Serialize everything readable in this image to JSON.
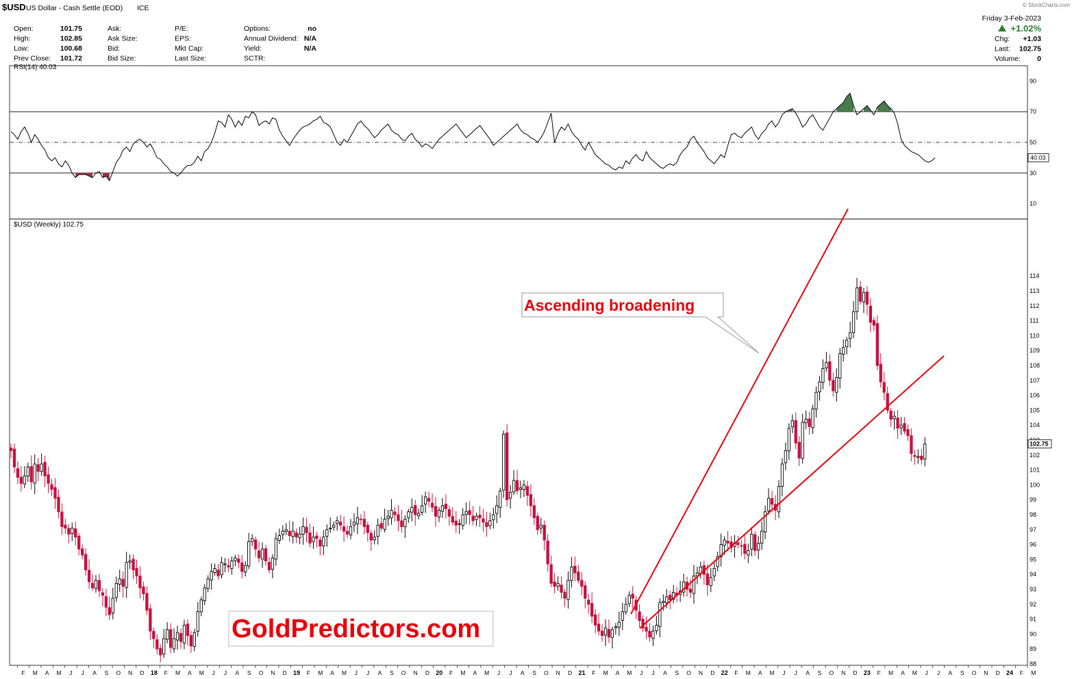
{
  "header": {
    "symbol": "$USD",
    "name": "US Dollar - Cash Settle (EOD)",
    "exchange": "ICE",
    "watermark": "© StockCharts.com",
    "date": "Friday   3-Feb-2023",
    "change_pct": "+1.02%",
    "quote_left": [
      {
        "label": "Open:",
        "value": "101.75"
      },
      {
        "label": "High:",
        "value": "102.85"
      },
      {
        "label": "Low:",
        "value": "100.68"
      },
      {
        "label": "Prev Close:",
        "value": "101.72"
      }
    ],
    "quote_mid": [
      {
        "label": "Ask:",
        "value": ""
      },
      {
        "label": "Ask Size:",
        "value": ""
      },
      {
        "label": "Bid:",
        "value": ""
      },
      {
        "label": "Bid Size:",
        "value": ""
      }
    ],
    "quote_mid2": [
      {
        "label": "P/E:",
        "value": ""
      },
      {
        "label": "EPS:",
        "value": ""
      },
      {
        "label": "Mkt Cap:",
        "value": ""
      },
      {
        "label": "Last Size:",
        "value": ""
      }
    ],
    "quote_mid3": [
      {
        "label": "Options:",
        "value": "no"
      },
      {
        "label": "Annual Dividend:",
        "value": "N/A"
      },
      {
        "label": "Yield:",
        "value": "N/A"
      },
      {
        "label": "SCTR:",
        "value": ""
      }
    ],
    "quote_right": [
      {
        "label": "Chg:",
        "value": "+1.03"
      },
      {
        "label": "Last:",
        "value": "102.75"
      },
      {
        "label": "Volume:",
        "value": "0"
      }
    ]
  },
  "colors": {
    "up": "#000000",
    "down": "#c8103e",
    "trendline": "#e8000b",
    "annotation_text": "#e8000b",
    "rsi_overbought_fill": "#4a7a4a",
    "rsi_oversold_fill": "#a0303a",
    "gridline": "#000000"
  },
  "chart_data": [
    {
      "type": "line",
      "name": "RSI(14)",
      "legend": "RSI(14) 40.03",
      "last_value_label": "40.03",
      "ylim": [
        0,
        100
      ],
      "yticks": [
        10,
        30,
        50,
        70,
        90
      ],
      "reference_lines": [
        30,
        50,
        70
      ],
      "x_start": "2017-01-06",
      "x_interval": "weekly",
      "values": [
        57,
        55,
        52,
        57,
        60,
        56,
        50,
        55,
        52,
        48,
        45,
        40,
        38,
        40,
        36,
        34,
        38,
        35,
        30,
        27,
        29,
        29,
        29,
        28,
        27,
        30,
        31,
        27,
        28,
        25,
        31,
        37,
        40,
        45,
        47,
        44,
        49,
        51,
        52,
        50,
        47,
        49,
        45,
        40,
        39,
        36,
        34,
        31,
        30,
        28,
        30,
        33,
        35,
        35,
        37,
        41,
        38,
        44,
        46,
        50,
        56,
        64,
        63,
        60,
        68,
        65,
        60,
        64,
        61,
        67,
        66,
        70,
        68,
        61,
        63,
        64,
        62,
        66,
        65,
        58,
        54,
        51,
        48,
        52,
        55,
        58,
        60,
        61,
        62,
        64,
        65,
        67,
        63,
        62,
        60,
        55,
        50,
        48,
        52,
        50,
        54,
        58,
        62,
        64,
        61,
        59,
        56,
        53,
        55,
        58,
        60,
        62,
        58,
        56,
        55,
        52,
        51,
        54,
        56,
        52,
        50,
        47,
        49,
        48,
        46,
        49,
        52,
        54,
        56,
        58,
        60,
        62,
        59,
        56,
        53,
        55,
        57,
        59,
        61,
        58,
        55,
        52,
        48,
        50,
        52,
        54,
        56,
        58,
        60,
        62,
        58,
        56,
        55,
        53,
        52,
        50,
        53,
        57,
        63,
        69,
        50,
        56,
        60,
        58,
        62,
        57,
        54,
        52,
        48,
        45,
        50,
        46,
        42,
        40,
        38,
        36,
        35,
        33,
        32,
        34,
        33,
        38,
        36,
        40,
        42,
        39,
        38,
        44,
        40,
        38,
        36,
        34,
        33,
        35,
        36,
        35,
        37,
        42,
        45,
        47,
        52,
        54,
        50,
        47,
        44,
        40,
        38,
        36,
        39,
        42,
        40,
        48,
        55,
        56,
        54,
        53,
        56,
        58,
        60,
        55,
        52,
        56,
        58,
        62,
        64,
        60,
        63,
        68,
        70,
        71,
        72,
        69,
        65,
        60,
        62,
        66,
        68,
        64,
        60,
        58,
        62,
        66,
        70,
        72,
        74,
        76,
        80,
        82,
        74,
        68,
        70,
        72,
        74,
        71,
        68,
        73,
        75,
        77,
        74,
        72,
        69,
        62,
        52,
        48,
        46,
        44,
        43,
        42,
        40,
        38,
        37,
        38,
        40
      ],
      "x_label_months": [
        "F",
        "M",
        "A",
        "M",
        "J",
        "J",
        "A",
        "S",
        "O",
        "N",
        "D",
        "18",
        "F",
        "M",
        "A",
        "M",
        "J",
        "J",
        "A",
        "S",
        "O",
        "N",
        "D",
        "19",
        "F",
        "M",
        "A",
        "M",
        "J",
        "J",
        "A",
        "S",
        "O",
        "N",
        "D",
        "20",
        "F",
        "M",
        "A",
        "M",
        "J",
        "J",
        "A",
        "S",
        "O",
        "N",
        "D",
        "21",
        "F",
        "M",
        "A",
        "M",
        "J",
        "J",
        "A",
        "S",
        "O",
        "N",
        "D",
        "22",
        "F",
        "M",
        "A",
        "M",
        "J",
        "J",
        "A",
        "S",
        "O",
        "N",
        "D",
        "23",
        "F",
        "M",
        "A",
        "M",
        "J",
        "J",
        "A",
        "S",
        "O",
        "N",
        "D",
        "24",
        "F",
        "M"
      ]
    },
    {
      "type": "candlestick",
      "name": "$USD (Weekly)",
      "legend": "$USD (Weekly) 102.75",
      "last_value_label": "102.75",
      "ylim": [
        88,
        115
      ],
      "yticks": [
        88,
        89,
        90,
        91,
        92,
        93,
        94,
        95,
        96,
        97,
        98,
        99,
        100,
        101,
        102,
        103,
        104,
        105,
        106,
        107,
        108,
        109,
        110,
        111,
        112,
        113,
        114
      ],
      "x_start": "2017-01-06",
      "x_interval": "weekly",
      "closes": [
        102.3,
        101.2,
        100.5,
        100.1,
        100.6,
        101.2,
        100.2,
        101.4,
        100.9,
        101.4,
        100.6,
        100.1,
        99.7,
        99.1,
        98.2,
        97.2,
        97.1,
        96.7,
        97.1,
        96.5,
        95.7,
        95.3,
        94.3,
        93.5,
        93.1,
        93.6,
        92.9,
        92.6,
        91.8,
        91.3,
        92.4,
        93.4,
        93.7,
        93.2,
        94.8,
        94.9,
        94.3,
        93.9,
        93.1,
        92.7,
        91.6,
        90.2,
        89.7,
        89.0,
        88.6,
        89.7,
        90.3,
        89.1,
        89.7,
        90.1,
        89.5,
        90.6,
        89.9,
        89.2,
        90.1,
        91.5,
        92.3,
        93.1,
        93.7,
        94.2,
        94.4,
        93.9,
        94.8,
        94.7,
        94.5,
        94.9,
        95.1,
        94.8,
        94.2,
        94.6,
        96.2,
        96.4,
        95.7,
        95.1,
        95.7,
        94.9,
        94.3,
        95.1,
        96.4,
        96.6,
        96.9,
        97.0,
        96.6,
        96.9,
        96.5,
        96.7,
        97.2,
        96.8,
        96.1,
        96.5,
        96.4,
        95.9,
        96.5,
        97.0,
        97.1,
        97.3,
        97.6,
        97.3,
        96.9,
        96.7,
        97.2,
        97.5,
        97.8,
        97.7,
        97.2,
        96.8,
        96.3,
        96.5,
        97.3,
        97.1,
        97.7,
        97.9,
        98.3,
        98.0,
        97.6,
        97.2,
        97.7,
        98.2,
        98.5,
        98.0,
        98.1,
        98.6,
        99.2,
        98.9,
        98.5,
        97.9,
        98.3,
        98.6,
        98.4,
        97.9,
        97.5,
        97.3,
        97.4,
        98.0,
        98.2,
        98.0,
        97.6,
        97.9,
        97.8,
        97.5,
        97.2,
        97.6,
        98.0,
        98.6,
        99.6,
        103.4,
        99.0,
        99.5,
        100.3,
        99.6,
        99.8,
        100.0,
        99.3,
        98.6,
        97.8,
        97.0,
        97.3,
        96.3,
        94.7,
        93.4,
        93.2,
        93.4,
        92.8,
        92.4,
        93.6,
        94.5,
        94.1,
        93.6,
        93.2,
        92.4,
        92.0,
        91.2,
        90.6,
        90.2,
        89.9,
        90.4,
        89.8,
        90.3,
        90.5,
        90.8,
        91.5,
        92.0,
        92.6,
        92.4,
        91.6,
        90.9,
        90.4,
        90.2,
        89.8,
        90.2,
        90.6,
        92.1,
        92.2,
        92.5,
        92.3,
        92.8,
        92.6,
        92.9,
        93.5,
        93.0,
        92.8,
        93.9,
        94.1,
        94.5,
        94.0,
        93.3,
        93.8,
        94.4,
        95.2,
        96.0,
        96.3,
        96.1,
        95.8,
        96.1,
        96.0,
        95.9,
        95.4,
        95.6,
        96.7,
        95.6,
        96.1,
        96.9,
        98.2,
        99.1,
        98.7,
        98.3,
        99.9,
        101.4,
        102.3,
        103.8,
        104.3,
        102.8,
        101.8,
        104.2,
        104.4,
        103.9,
        105.1,
        106.2,
        106.9,
        107.8,
        108.2,
        107.0,
        106.3,
        107.2,
        108.8,
        109.2,
        109.7,
        110.2,
        111.6,
        113.2,
        112.3,
        112.9,
        112.1,
        110.9,
        110.7,
        108.0,
        106.9,
        106.2,
        105.0,
        104.4,
        104.6,
        103.8,
        104.0,
        103.6,
        103.3,
        102.1,
        101.9,
        101.9,
        101.7,
        102.75
      ]
    }
  ],
  "annotations": {
    "pattern_label": "Ascending broadening",
    "brand_label": "GoldPredictors.com"
  }
}
